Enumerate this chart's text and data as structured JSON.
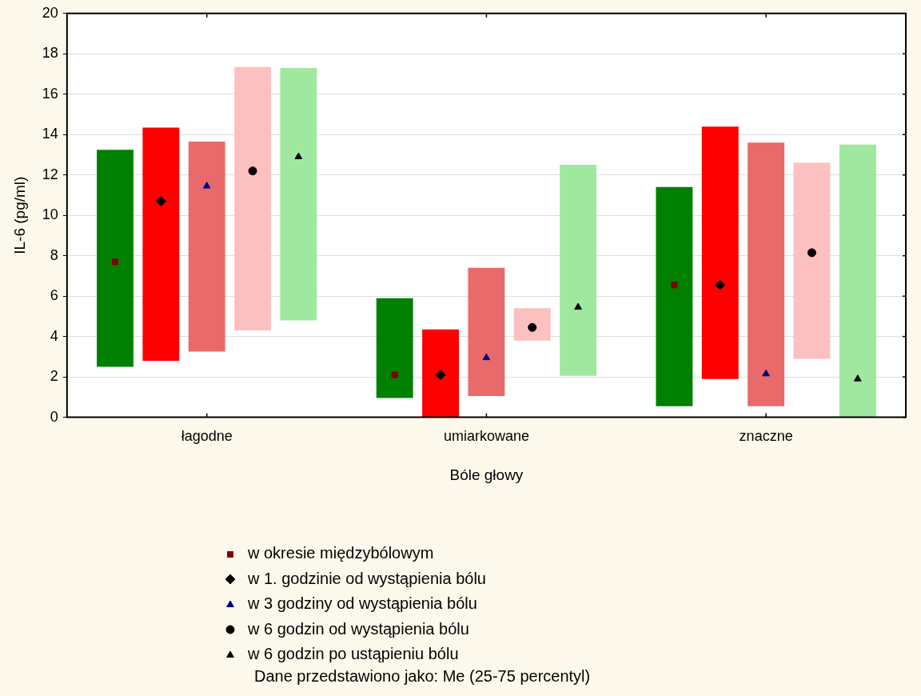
{
  "chart_data": {
    "type": "bar",
    "xlabel": "Bóle głowy",
    "ylabel": "IL-6 (pg/ml)",
    "categories": [
      "łagodne",
      "umiarkowane",
      "znaczne"
    ],
    "ylim": [
      0,
      20
    ],
    "yticks": [
      0,
      2,
      4,
      6,
      8,
      10,
      12,
      14,
      16,
      18,
      20
    ],
    "grid": "y",
    "legend": "bottom",
    "series": [
      {
        "type": "bar",
        "color": "#008000",
        "base": [
          2.5,
          0.95,
          0.55
        ],
        "values": [
          10.75,
          4.95,
          10.85
        ]
      },
      {
        "type": "bar",
        "color": "#ff0000",
        "base": [
          2.8,
          0,
          1.9
        ],
        "values": [
          11.55,
          4.35,
          12.5
        ]
      },
      {
        "type": "bar",
        "color": "#e96a6a",
        "base": [
          3.25,
          1.05,
          0.55
        ],
        "values": [
          10.4,
          6.35,
          13.05
        ]
      },
      {
        "type": "bar",
        "color": "#fdc0c0",
        "base": [
          4.3,
          3.8,
          2.9
        ],
        "values": [
          13.05,
          1.6,
          9.7
        ]
      },
      {
        "type": "bar",
        "color": "#a0e8a0",
        "base": [
          4.8,
          2.05,
          0
        ],
        "values": [
          12.5,
          10.45,
          13.5
        ]
      },
      {
        "type": "scatter",
        "name": "w okresie międzybólowym",
        "color": "#800000",
        "marker": "square",
        "x": [
          "łagodne",
          "umiarkowane",
          "znaczne"
        ],
        "values": [
          7.7,
          2.1,
          6.55
        ]
      },
      {
        "type": "scatter",
        "name": "w 1. godzinie od wystąpienia bólu",
        "color": "#000000",
        "marker": "diamond",
        "x": [
          "łagodne",
          "umiarkowane",
          "znaczne"
        ],
        "values": [
          10.7,
          2.1,
          6.55
        ]
      },
      {
        "type": "scatter",
        "name": "w 3 godziny od wystąpienia bólu",
        "color": "#000080",
        "marker": "triangle",
        "x": [
          "łagodne",
          "umiarkowane",
          "znaczne"
        ],
        "values": [
          11.45,
          2.95,
          2.15
        ]
      },
      {
        "type": "scatter",
        "name": "w 6 godzin od wystąpienia bólu",
        "color": "#000000",
        "marker": "circle",
        "x": [
          "łagodne",
          "umiarkowane",
          "znaczne"
        ],
        "values": [
          12.2,
          4.45,
          8.15
        ]
      },
      {
        "type": "scatter",
        "name": "w 6 godzin po ustąpieniu bólu",
        "color": "#000000",
        "marker": "triangle",
        "x": [
          "łagodne",
          "umiarkowane",
          "znaczne"
        ],
        "values": [
          12.9,
          5.45,
          1.9
        ]
      }
    ],
    "annotations": [
      "Dane przedstawiono jako: Me (25-75 percentyl)"
    ]
  }
}
